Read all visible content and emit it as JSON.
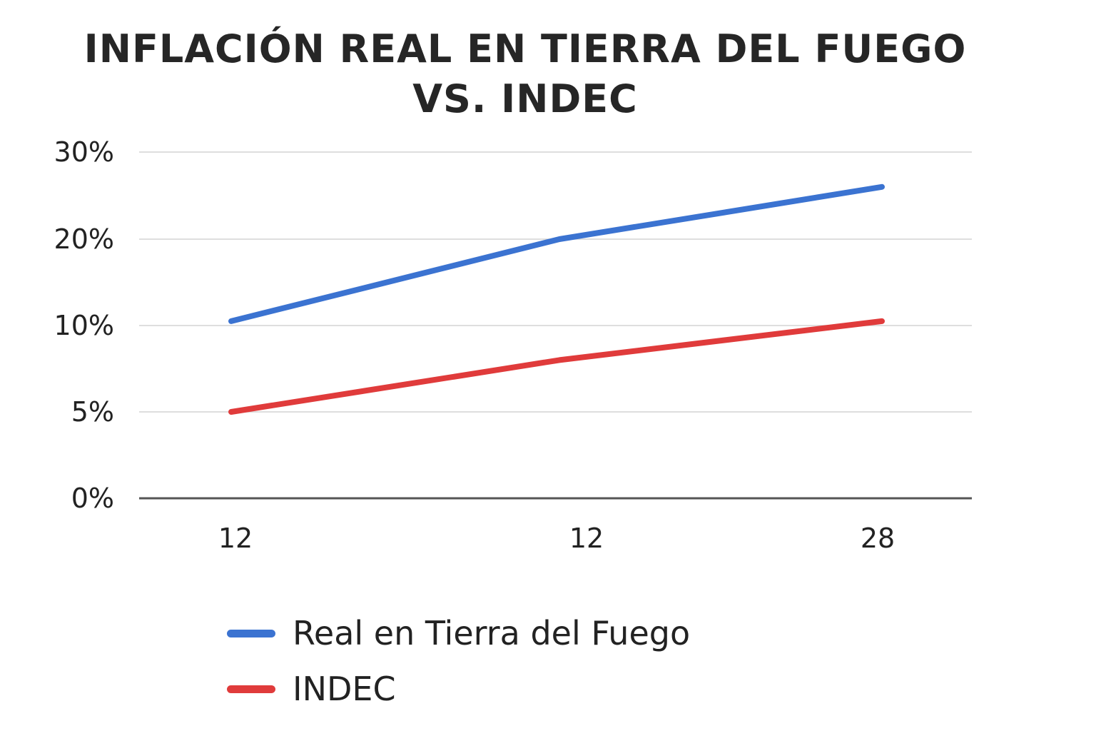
{
  "chart_data": {
    "type": "line",
    "title_lines": [
      "INFLACIÓN REAL EN TIERRA DEL FUEGO",
      "VS. INDEC"
    ],
    "xlabel": "",
    "ylabel": "",
    "x_tick_labels": [
      "12",
      "12",
      "28"
    ],
    "y_tick_labels": [
      "0%",
      "5%",
      "10%",
      "20%",
      "30%"
    ],
    "grid": true,
    "legend_position": "bottom",
    "series": [
      {
        "name": "Real en Tierra del Fuego",
        "color": "#3b73d1",
        "points": [
          {
            "tick": 0,
            "value": "10.5%"
          },
          {
            "tick": 1,
            "value": "20%"
          },
          {
            "tick": 2,
            "value": "26%"
          }
        ]
      },
      {
        "name": "INDEC",
        "color": "#e03b3b",
        "points": [
          {
            "tick": 0,
            "value": "5%"
          },
          {
            "tick": 1,
            "value": "8%"
          },
          {
            "tick": 2,
            "value": "10.5%"
          }
        ]
      }
    ]
  }
}
